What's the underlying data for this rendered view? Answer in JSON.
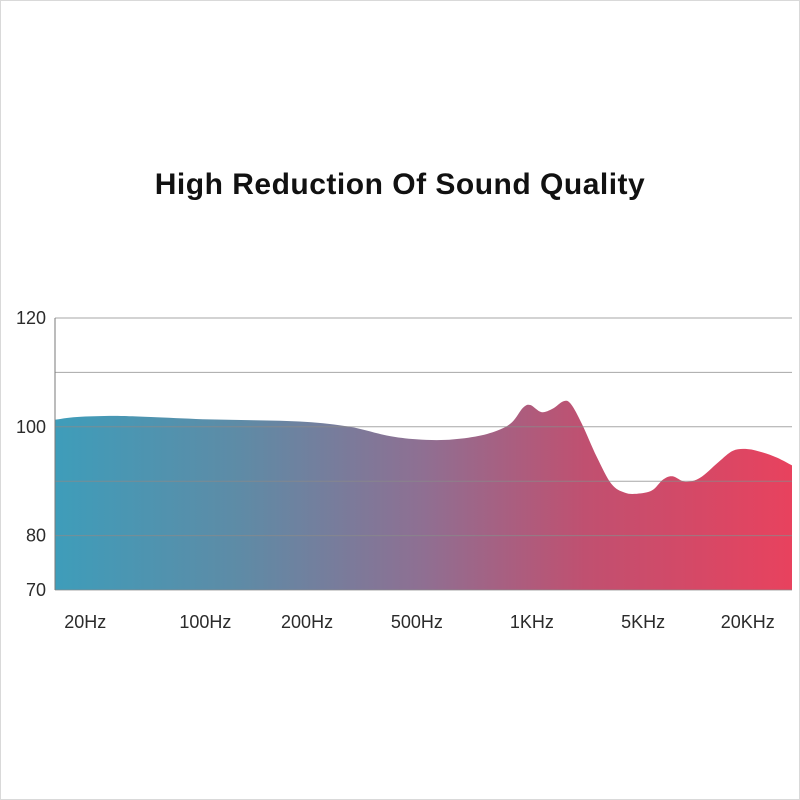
{
  "page": {
    "title": "High Reduction Of Sound Quality"
  },
  "chart_data": {
    "type": "area",
    "title": "High Reduction Of Sound Quality",
    "xlabel": "",
    "ylabel": "",
    "ylim": [
      70,
      120
    ],
    "grid": true,
    "x_scale_note": "logarithmic frequency axis, ticks evenly spaced",
    "x_ticks": [
      {
        "f": 0.041,
        "label": "20Hz"
      },
      {
        "f": 0.204,
        "label": "100Hz"
      },
      {
        "f": 0.342,
        "label": "200Hz"
      },
      {
        "f": 0.491,
        "label": "500Hz"
      },
      {
        "f": 0.647,
        "label": "1KHz"
      },
      {
        "f": 0.798,
        "label": "5KHz"
      },
      {
        "f": 0.94,
        "label": "20KHz"
      }
    ],
    "y_ticks": [
      {
        "value": 120,
        "label": "120"
      },
      {
        "value": 110,
        "label": ""
      },
      {
        "value": 100,
        "label": "100"
      },
      {
        "value": 90,
        "label": ""
      },
      {
        "value": 80,
        "label": "80"
      },
      {
        "value": 70,
        "label": "70"
      }
    ],
    "gradient_stops": [
      {
        "offset": 0.0,
        "color": "#3E9DBA"
      },
      {
        "offset": 0.25,
        "color": "#5E8BA6"
      },
      {
        "offset": 0.5,
        "color": "#8F6F92"
      },
      {
        "offset": 0.72,
        "color": "#C05070"
      },
      {
        "offset": 1.0,
        "color": "#E8425E"
      }
    ],
    "grid_color": "#8a8a8a",
    "axis_color": "#7a7a7a",
    "points": [
      [
        0.0,
        101.3
      ],
      [
        0.03,
        101.8
      ],
      [
        0.08,
        102.0
      ],
      [
        0.13,
        101.8
      ],
      [
        0.2,
        101.4
      ],
      [
        0.27,
        101.2
      ],
      [
        0.34,
        100.9
      ],
      [
        0.4,
        100.0
      ],
      [
        0.45,
        98.4
      ],
      [
        0.49,
        97.7
      ],
      [
        0.53,
        97.6
      ],
      [
        0.57,
        98.2
      ],
      [
        0.6,
        99.3
      ],
      [
        0.62,
        100.8
      ],
      [
        0.635,
        103.5
      ],
      [
        0.645,
        104.0
      ],
      [
        0.66,
        102.7
      ],
      [
        0.675,
        103.3
      ],
      [
        0.69,
        104.7
      ],
      [
        0.7,
        104.2
      ],
      [
        0.715,
        100.5
      ],
      [
        0.735,
        94.5
      ],
      [
        0.755,
        89.5
      ],
      [
        0.773,
        87.9
      ],
      [
        0.79,
        87.7
      ],
      [
        0.81,
        88.3
      ],
      [
        0.825,
        90.3
      ],
      [
        0.838,
        90.9
      ],
      [
        0.855,
        89.9
      ],
      [
        0.875,
        90.6
      ],
      [
        0.9,
        93.5
      ],
      [
        0.92,
        95.6
      ],
      [
        0.94,
        95.9
      ],
      [
        0.96,
        95.3
      ],
      [
        0.98,
        94.3
      ],
      [
        1.0,
        92.9
      ]
    ]
  }
}
